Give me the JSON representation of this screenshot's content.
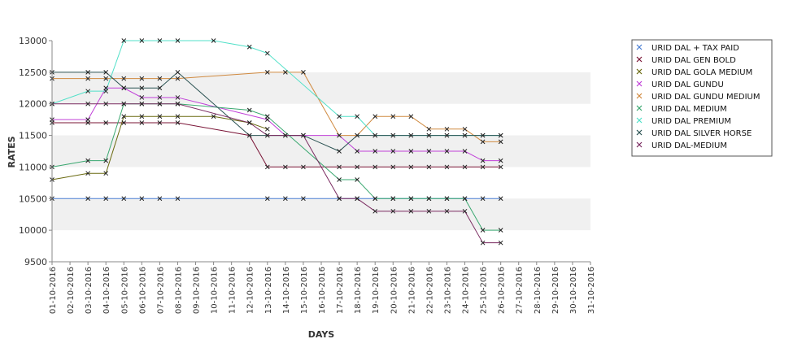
{
  "chart_data": {
    "type": "line",
    "xlabel": "DAYS",
    "ylabel": "RATES",
    "ylim": [
      9500,
      13000
    ],
    "yticks": [
      9500,
      10000,
      10500,
      11000,
      11500,
      12000,
      12500,
      13000
    ],
    "grid": "horizontal alternating bands",
    "legend_position": "right",
    "x": [
      "01-10-2016",
      "02-10-2016",
      "03-10-2016",
      "04-10-2016",
      "05-10-2016",
      "06-10-2016",
      "07-10-2016",
      "08-10-2016",
      "09-10-2016",
      "10-10-2016",
      "11-10-2016",
      "12-10-2016",
      "13-10-2016",
      "14-10-2016",
      "15-10-2016",
      "16-10-2016",
      "17-10-2016",
      "18-10-2016",
      "19-10-2016",
      "20-10-2016",
      "21-10-2016",
      "22-10-2016",
      "23-10-2016",
      "24-10-2016",
      "25-10-2016",
      "26-10-2016",
      "27-10-2016",
      "28-10-2016",
      "29-10-2016",
      "30-10-2016",
      "31-10-2016"
    ],
    "series": [
      {
        "name": "URID DAL + TAX PAID",
        "color": "#4a7fd4",
        "values": [
          10500,
          null,
          10500,
          10500,
          10500,
          10500,
          10500,
          10500,
          null,
          null,
          null,
          null,
          10500,
          10500,
          10500,
          null,
          10500,
          10500,
          10500,
          10500,
          10500,
          10500,
          10500,
          10500,
          10500,
          10500,
          null,
          null,
          null,
          null,
          null
        ]
      },
      {
        "name": "URID DAL GEN BOLD",
        "color": "#7a1436",
        "values": [
          11700,
          null,
          11700,
          11700,
          11700,
          11700,
          11700,
          11700,
          null,
          null,
          null,
          11500,
          11000,
          11000,
          11000,
          null,
          11000,
          11000,
          11000,
          11000,
          11000,
          11000,
          11000,
          11000,
          11000,
          11000,
          null,
          null,
          null,
          null,
          null
        ]
      },
      {
        "name": "URID DAL GOLA MEDIUM",
        "color": "#6a6a10",
        "values": [
          10800,
          null,
          10900,
          10900,
          11800,
          11800,
          11800,
          11800,
          null,
          11800,
          null,
          11700,
          11600,
          null,
          null,
          null,
          null,
          null,
          null,
          null,
          null,
          null,
          null,
          null,
          null,
          null,
          null,
          null,
          null,
          null,
          null
        ]
      },
      {
        "name": "URID DAL GUNDU",
        "color": "#c040d8",
        "values": [
          11750,
          null,
          11750,
          12250,
          12250,
          12100,
          12100,
          12100,
          null,
          null,
          null,
          null,
          11750,
          11500,
          11500,
          null,
          11500,
          11250,
          11250,
          11250,
          11250,
          11250,
          11250,
          11250,
          11100,
          11100,
          null,
          null,
          null,
          null,
          null
        ]
      },
      {
        "name": "URID DAL GUNDU MEDIUM",
        "color": "#d08a40",
        "values": [
          12400,
          null,
          12400,
          12400,
          12400,
          12400,
          12400,
          12400,
          null,
          null,
          null,
          null,
          12500,
          12500,
          12500,
          null,
          11500,
          11500,
          11800,
          11800,
          11800,
          11600,
          11600,
          11600,
          11400,
          11400,
          null,
          null,
          null,
          null,
          null
        ]
      },
      {
        "name": "URID DAL MEDIUM",
        "color": "#3aa870",
        "values": [
          11000,
          null,
          11100,
          11100,
          12000,
          12000,
          12000,
          12000,
          null,
          null,
          null,
          11900,
          11800,
          null,
          null,
          null,
          10800,
          10800,
          10500,
          10500,
          10500,
          10500,
          10500,
          10500,
          10000,
          10000,
          null,
          null,
          null,
          null,
          null
        ]
      },
      {
        "name": "URID DAL PREMIUM",
        "color": "#50e0c8",
        "values": [
          12000,
          null,
          12200,
          12200,
          13000,
          13000,
          13000,
          13000,
          null,
          13000,
          null,
          12900,
          12800,
          null,
          null,
          null,
          11800,
          11800,
          11500,
          11500,
          11500,
          11500,
          11500,
          11500,
          11500,
          11500,
          null,
          null,
          null,
          null,
          null
        ]
      },
      {
        "name": "URID DAL SILVER HORSE",
        "color": "#2a5252",
        "values": [
          12500,
          null,
          12500,
          12500,
          12250,
          12250,
          12250,
          12500,
          null,
          null,
          null,
          11500,
          11500,
          11500,
          11500,
          null,
          11250,
          11500,
          11500,
          11500,
          11500,
          11500,
          11500,
          11500,
          11500,
          11500,
          null,
          null,
          null,
          null,
          null
        ]
      },
      {
        "name": "URID DAL-MEDIUM",
        "color": "#7a2a60",
        "values": [
          12000,
          null,
          12000,
          12000,
          12000,
          12000,
          12000,
          12000,
          null,
          null,
          null,
          11700,
          11500,
          11500,
          11500,
          null,
          10500,
          10500,
          10300,
          10300,
          10300,
          10300,
          10300,
          10300,
          9800,
          9800,
          null,
          null,
          null,
          null,
          null
        ]
      }
    ]
  }
}
